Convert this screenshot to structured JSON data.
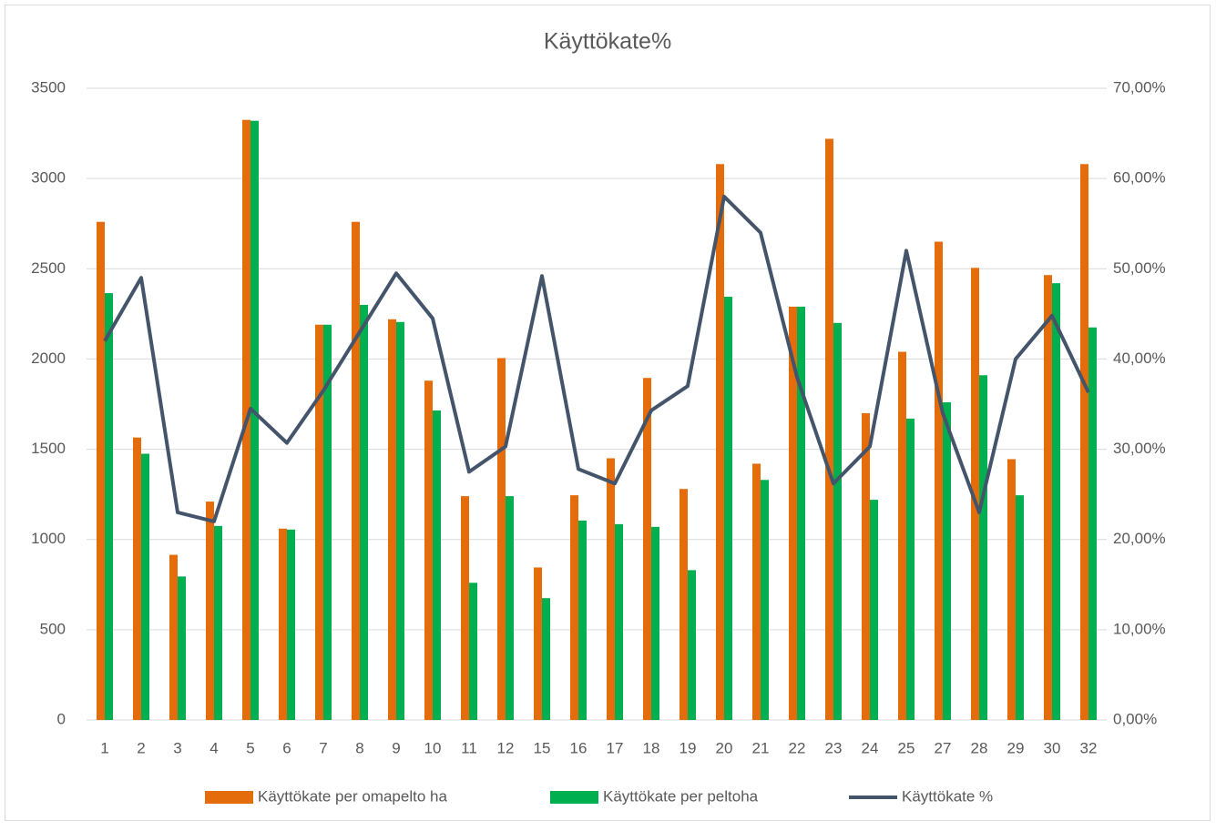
{
  "chart_data": {
    "type": "bar-line",
    "title": "Käyttökate%",
    "categories": [
      "1",
      "2",
      "3",
      "4",
      "5",
      "6",
      "7",
      "8",
      "9",
      "10",
      "11",
      "12",
      "15",
      "16",
      "17",
      "18",
      "19",
      "20",
      "21",
      "22",
      "23",
      "24",
      "25",
      "27",
      "28",
      "29",
      "30",
      "32"
    ],
    "series": [
      {
        "name": "Käyttökate per omapelto ha",
        "type": "bar",
        "color": "#e46c0a",
        "values": [
          2760,
          1565,
          915,
          1210,
          3325,
          1060,
          2190,
          2760,
          2220,
          1880,
          1240,
          2005,
          845,
          1245,
          1450,
          1895,
          1280,
          3080,
          1420,
          2290,
          3220,
          1700,
          2040,
          2650,
          2505,
          1445,
          2465,
          3080
        ]
      },
      {
        "name": "Käyttökate per peltoha",
        "type": "bar",
        "color": "#00b050",
        "values": [
          2365,
          1475,
          795,
          1075,
          3320,
          1055,
          2190,
          2300,
          2205,
          1715,
          760,
          1240,
          675,
          1105,
          1085,
          1070,
          830,
          2345,
          1330,
          2290,
          2200,
          1220,
          1670,
          1760,
          1910,
          1245,
          2420,
          2175
        ]
      },
      {
        "name": "Käyttökate %",
        "type": "line",
        "axis": "y2",
        "color": "#44546a",
        "values": [
          42.0,
          49.0,
          23.0,
          22.0,
          34.5,
          30.7,
          36.5,
          43.0,
          49.5,
          44.5,
          27.5,
          30.3,
          49.2,
          27.8,
          26.2,
          34.3,
          37.0,
          58.0,
          54.0,
          38.0,
          26.2,
          30.3,
          52.0,
          34.0,
          23.0,
          40.0,
          44.8,
          36.3
        ]
      }
    ],
    "ylim": [
      0,
      3500
    ],
    "yticks": [
      0,
      500,
      1000,
      1500,
      2000,
      2500,
      3000,
      3500
    ],
    "y2lim": [
      0,
      70
    ],
    "y2ticks": [
      {
        "value": 0,
        "label": "0,00%"
      },
      {
        "value": 10,
        "label": "10,00%"
      },
      {
        "value": 20,
        "label": "20,00%"
      },
      {
        "value": 30,
        "label": "30,00%"
      },
      {
        "value": 40,
        "label": "40,00%"
      },
      {
        "value": 50,
        "label": "50,00%"
      },
      {
        "value": 60,
        "label": "60,00%"
      },
      {
        "value": 70,
        "label": "70,00%"
      }
    ],
    "grid": true,
    "legend": "bottom"
  }
}
